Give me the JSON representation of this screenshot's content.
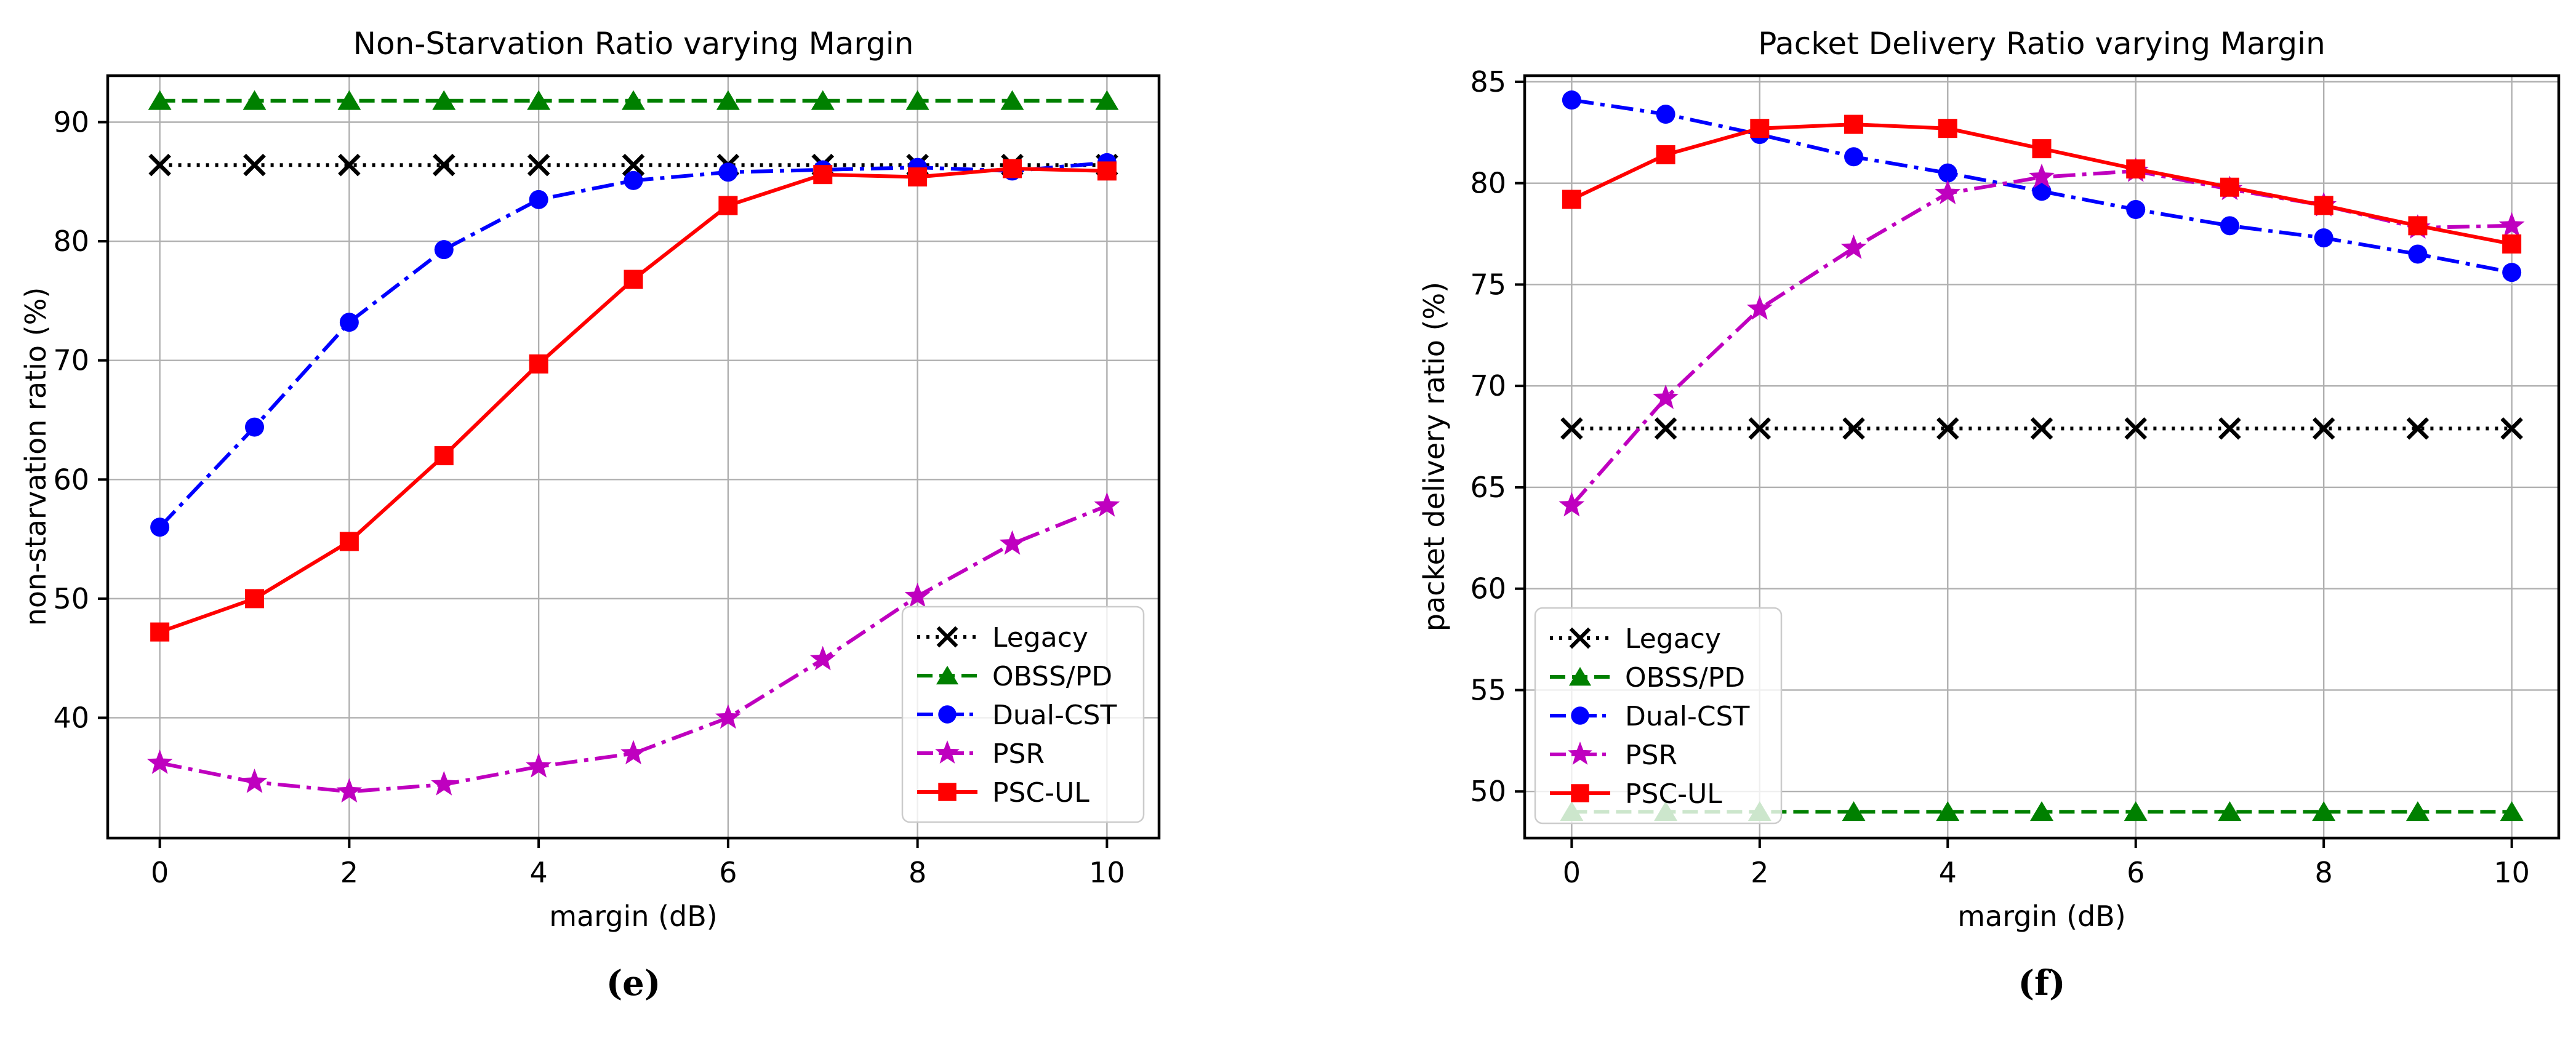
{
  "chart_data": [
    {
      "type": "line",
      "title": "Non-Starvation Ratio varying Margin",
      "xlabel": "margin (dB)",
      "ylabel": "non-starvation ratio (%)",
      "caption": "(e)",
      "x": [
        0,
        1,
        2,
        3,
        4,
        5,
        6,
        7,
        8,
        9,
        10
      ],
      "xticks": [
        0,
        2,
        4,
        6,
        8,
        10
      ],
      "yticks": [
        40,
        50,
        60,
        70,
        80,
        90
      ],
      "xlim": [
        -0.55,
        10.55
      ],
      "ylim": [
        29.9,
        93.9
      ],
      "grid": true,
      "legend_position": "lower-right",
      "series": [
        {
          "name": "Legacy",
          "color": "#000000",
          "linestyle": "dotted",
          "marker": "x",
          "values": [
            86.4,
            86.4,
            86.4,
            86.4,
            86.4,
            86.4,
            86.4,
            86.4,
            86.4,
            86.4,
            86.4
          ]
        },
        {
          "name": "OBSS/PD",
          "color": "#008000",
          "linestyle": "dashed",
          "marker": "triangle",
          "values": [
            91.8,
            91.8,
            91.8,
            91.8,
            91.8,
            91.8,
            91.8,
            91.8,
            91.8,
            91.8,
            91.8
          ]
        },
        {
          "name": "Dual-CST",
          "color": "#0000ff",
          "linestyle": "dashdot",
          "marker": "circle",
          "values": [
            56.0,
            64.4,
            73.2,
            79.3,
            83.5,
            85.1,
            85.8,
            86.0,
            86.2,
            85.9,
            86.6
          ]
        },
        {
          "name": "PSR",
          "color": "#bf00bf",
          "linestyle": "dashdot",
          "marker": "star",
          "values": [
            36.2,
            34.6,
            33.8,
            34.4,
            35.9,
            37.0,
            40.0,
            44.9,
            50.2,
            54.6,
            57.8
          ]
        },
        {
          "name": "PSC-UL",
          "color": "#ff0000",
          "linestyle": "solid",
          "marker": "square",
          "values": [
            47.2,
            50.0,
            54.8,
            62.0,
            69.7,
            76.8,
            83.0,
            85.6,
            85.4,
            86.1,
            85.9
          ]
        }
      ]
    },
    {
      "type": "line",
      "title": "Packet Delivery Ratio varying Margin",
      "xlabel": "margin (dB)",
      "ylabel": "packet delivery ratio (%)",
      "caption": "(f)",
      "x": [
        0,
        1,
        2,
        3,
        4,
        5,
        6,
        7,
        8,
        9,
        10
      ],
      "xticks": [
        0,
        2,
        4,
        6,
        8,
        10
      ],
      "yticks": [
        50,
        55,
        60,
        65,
        70,
        75,
        80,
        85
      ],
      "xlim": [
        -0.5,
        10.5
      ],
      "ylim": [
        47.7,
        85.3
      ],
      "grid": true,
      "legend_position": "lower-left",
      "series": [
        {
          "name": "Legacy",
          "color": "#000000",
          "linestyle": "dotted",
          "marker": "x",
          "values": [
            67.9,
            67.9,
            67.9,
            67.9,
            67.9,
            67.9,
            67.9,
            67.9,
            67.9,
            67.9,
            67.9
          ]
        },
        {
          "name": "OBSS/PD",
          "color": "#008000",
          "linestyle": "dashed",
          "marker": "triangle",
          "values": [
            49.0,
            49.0,
            49.0,
            49.0,
            49.0,
            49.0,
            49.0,
            49.0,
            49.0,
            49.0,
            49.0
          ]
        },
        {
          "name": "Dual-CST",
          "color": "#0000ff",
          "linestyle": "dashdot",
          "marker": "circle",
          "values": [
            84.1,
            83.4,
            82.4,
            81.3,
            80.5,
            79.6,
            78.7,
            77.9,
            77.3,
            76.5,
            75.6
          ]
        },
        {
          "name": "PSR",
          "color": "#bf00bf",
          "linestyle": "dashdot",
          "marker": "star",
          "values": [
            64.1,
            69.4,
            73.8,
            76.8,
            79.5,
            80.3,
            80.6,
            79.7,
            78.9,
            77.8,
            77.9
          ]
        },
        {
          "name": "PSC-UL",
          "color": "#ff0000",
          "linestyle": "solid",
          "marker": "square",
          "values": [
            79.2,
            81.4,
            82.7,
            82.9,
            82.7,
            81.7,
            80.7,
            79.8,
            78.9,
            77.9,
            77.0
          ]
        }
      ]
    }
  ],
  "style": {
    "grid_color": "#b0b0b0",
    "spine_color": "#000000",
    "legend_border_color": "#cccccc",
    "legend_fill": "rgba(255,255,255,0.8)"
  }
}
